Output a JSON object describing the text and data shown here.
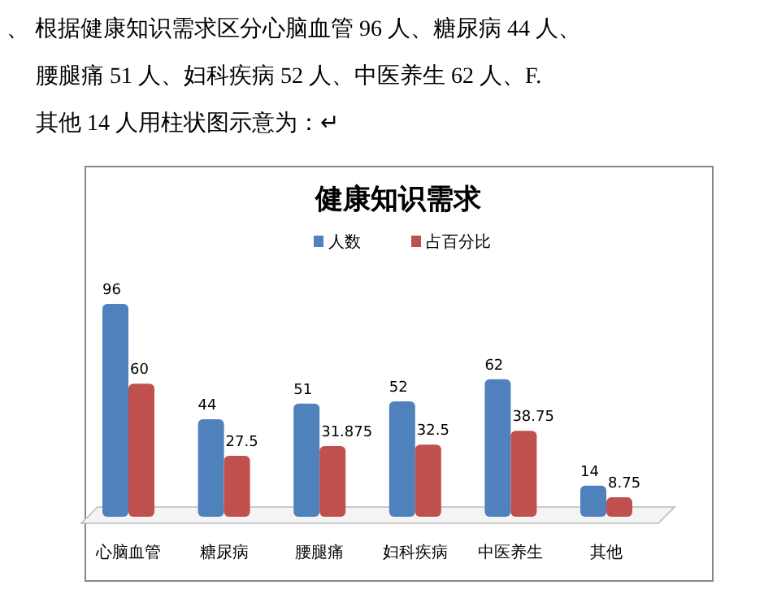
{
  "chart_data": {
    "type": "bar",
    "title": "健康知识需求",
    "categories": [
      "心脑血管",
      "糖尿病",
      "腰腿痛",
      "妇科疾病",
      "中医养生",
      "其他"
    ],
    "series": [
      {
        "name": "人数",
        "color": "#4f81bd",
        "values": [
          96,
          44,
          51,
          52,
          62,
          14
        ]
      },
      {
        "name": "占百分比",
        "color": "#c0504d",
        "values": [
          60,
          27.5,
          31.875,
          32.5,
          38.75,
          8.75
        ]
      }
    ],
    "data_labels": true,
    "legend": "top",
    "annotations": [
      "、 根据健康知识需求区分心脑血管 96 人、糖尿病 44 人、",
      "腰腿痛 51 人、妇科疾病 52 人、中医养生 62 人、F.",
      "其他 14 人用柱状图示意为：↵"
    ]
  }
}
